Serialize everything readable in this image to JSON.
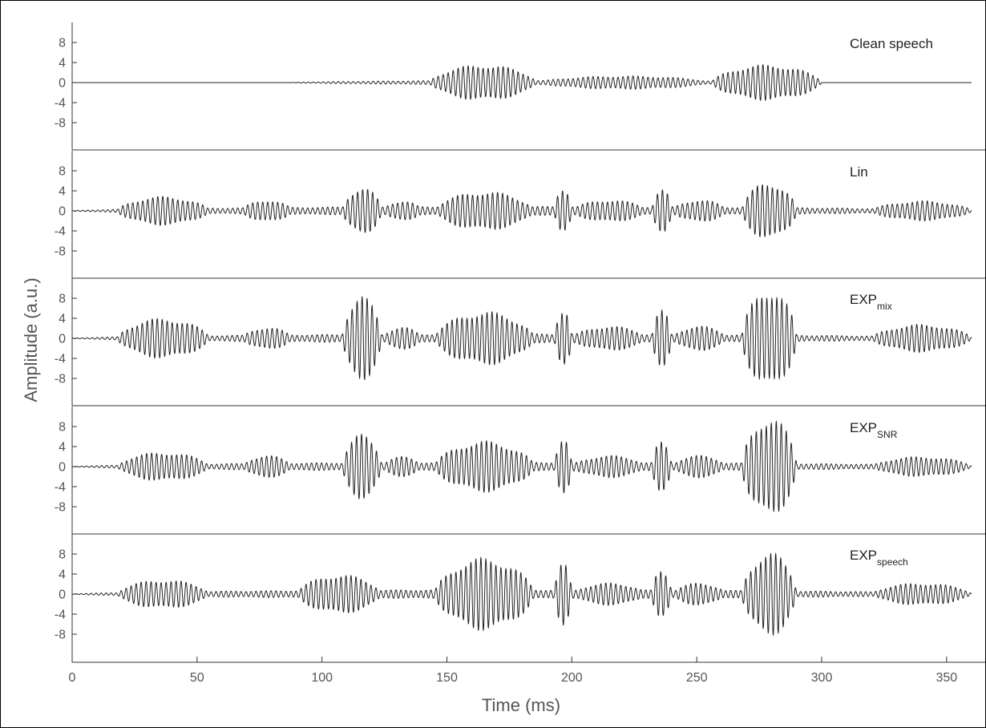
{
  "chart_data": {
    "type": "line",
    "xlabel": "Time (ms)",
    "ylabel": "Amplitude (a.u.)",
    "xlim": [
      0,
      360
    ],
    "x_ticks": [
      0,
      50,
      100,
      150,
      200,
      250,
      300,
      350
    ],
    "ylim": [
      -12,
      12
    ],
    "y_ticks": [
      8,
      4,
      0,
      -4,
      -8
    ],
    "y_tick_labels": [
      "8",
      "4",
      "0",
      "-4",
      "-8"
    ],
    "carrier_frequency_khz": 0.5,
    "grid": false,
    "line_color": "#222222",
    "panels": [
      {
        "label_main": "Clean speech",
        "label_sub": "",
        "bursts": [
          [
            87,
            300,
            0.4
          ],
          [
            143,
            186,
            3.2
          ],
          [
            186,
            256,
            1.2
          ],
          [
            256,
            300,
            3.2
          ]
        ]
      },
      {
        "label_main": "Lin",
        "label_sub": "",
        "bursts": [
          [
            0,
            360,
            0.8
          ],
          [
            18,
            55,
            2.6
          ],
          [
            68,
            88,
            2.0
          ],
          [
            108,
            124,
            4.2
          ],
          [
            124,
            140,
            1.8
          ],
          [
            145,
            185,
            3.5
          ],
          [
            193,
            200,
            4.5
          ],
          [
            200,
            230,
            2.0
          ],
          [
            232,
            240,
            4.0
          ],
          [
            240,
            262,
            2.0
          ],
          [
            268,
            290,
            5.2
          ],
          [
            320,
            360,
            1.8
          ]
        ]
      },
      {
        "label_main": "EXP",
        "label_sub": "mix",
        "bursts": [
          [
            0,
            360,
            0.8
          ],
          [
            18,
            55,
            3.6
          ],
          [
            68,
            88,
            2.0
          ],
          [
            108,
            124,
            7.5
          ],
          [
            124,
            140,
            2.0
          ],
          [
            145,
            185,
            4.8
          ],
          [
            193,
            200,
            5.5
          ],
          [
            200,
            230,
            2.2
          ],
          [
            232,
            240,
            5.0
          ],
          [
            240,
            262,
            2.2
          ],
          [
            268,
            290,
            9.0
          ],
          [
            320,
            360,
            2.5
          ]
        ]
      },
      {
        "label_main": "EXP",
        "label_sub": "SNR",
        "bursts": [
          [
            0,
            360,
            0.8
          ],
          [
            18,
            55,
            2.6
          ],
          [
            68,
            88,
            2.0
          ],
          [
            108,
            124,
            5.8
          ],
          [
            124,
            140,
            1.8
          ],
          [
            145,
            185,
            4.6
          ],
          [
            193,
            200,
            5.0
          ],
          [
            200,
            230,
            2.0
          ],
          [
            232,
            240,
            4.5
          ],
          [
            240,
            262,
            2.0
          ],
          [
            268,
            290,
            9.0
          ],
          [
            320,
            360,
            1.8
          ]
        ]
      },
      {
        "label_main": "EXP",
        "label_sub": "speech",
        "bursts": [
          [
            0,
            360,
            0.8
          ],
          [
            18,
            55,
            2.6
          ],
          [
            90,
            124,
            3.5
          ],
          [
            145,
            185,
            6.5
          ],
          [
            193,
            200,
            5.5
          ],
          [
            200,
            230,
            2.0
          ],
          [
            232,
            240,
            4.5
          ],
          [
            240,
            262,
            2.0
          ],
          [
            268,
            290,
            7.5
          ],
          [
            320,
            360,
            2.0
          ]
        ]
      }
    ]
  }
}
